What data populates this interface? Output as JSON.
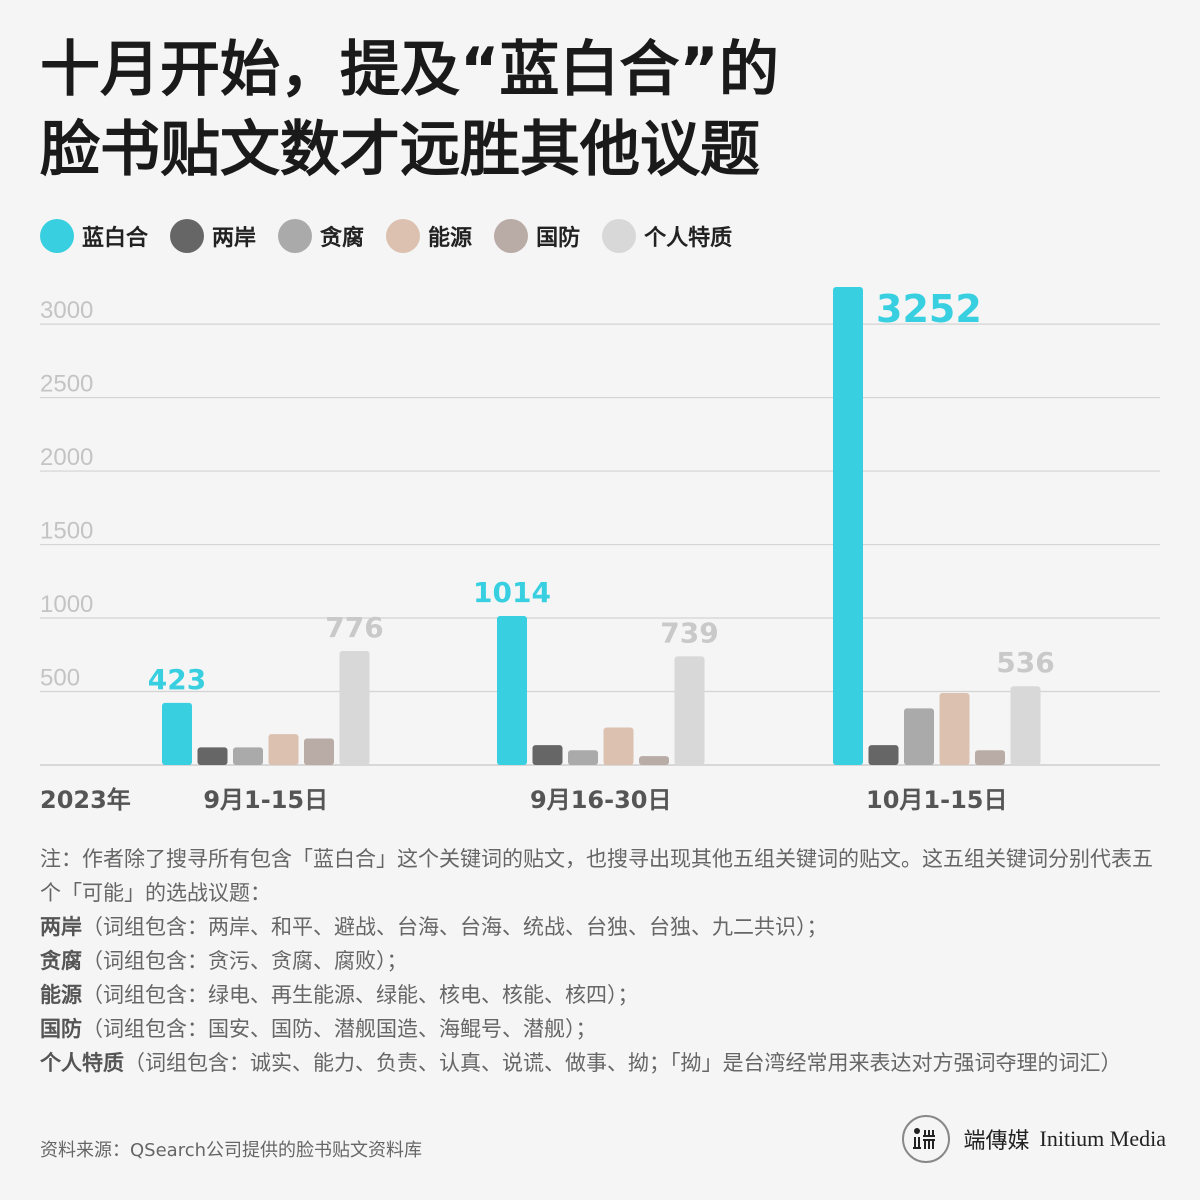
{
  "title_lines": [
    "十月开始，提及“蓝白合”的",
    "脸书贴文数才远胜其他议题"
  ],
  "chart_data": {
    "type": "bar",
    "year_label": "2023年",
    "categories": [
      "9月1-15日",
      "9月16-30日",
      "10月1-15日"
    ],
    "ylim": [
      0,
      3300
    ],
    "yticks": [
      500,
      1000,
      1500,
      2000,
      2500,
      3000
    ],
    "grid": true,
    "legend_position": "top-left",
    "series": [
      {
        "name": "蓝白合",
        "color": "#38d0e0",
        "label_color": "#38d0e0",
        "values": [
          423,
          1014,
          3252
        ],
        "labels": [
          "423",
          "1014",
          "3252"
        ]
      },
      {
        "name": "两岸",
        "color": "#666666",
        "values": [
          120,
          135,
          135
        ]
      },
      {
        "name": "贪腐",
        "color": "#aaaaaa",
        "values": [
          120,
          100,
          385
        ]
      },
      {
        "name": "能源",
        "color": "#dcc1b0",
        "values": [
          210,
          255,
          490
        ]
      },
      {
        "name": "国防",
        "color": "#b9aba6",
        "values": [
          180,
          60,
          100
        ]
      },
      {
        "name": "个人特质",
        "color": "#d8d8d8",
        "label_color": "#c9c9c9",
        "values": [
          776,
          739,
          536
        ],
        "labels": [
          "776",
          "739",
          "536"
        ]
      }
    ]
  },
  "notes": [
    {
      "bold": "",
      "text": "注：作者除了搜寻所有包含「蓝白合」这个关键词的贴文，也搜寻出现其他五组关键词的贴文。这五组关键词分别代表五个「可能」的选战议题："
    },
    {
      "bold": "两岸",
      "text": "（词组包含：两岸、和平、避战、台海、台海、统战、台独、台独、九二共识）；"
    },
    {
      "bold": "贪腐",
      "text": "（词组包含：贪污、贪腐、腐败）；"
    },
    {
      "bold": "能源",
      "text": "（词组包含：绿电、再生能源、绿能、核电、核能、核四）；"
    },
    {
      "bold": "国防",
      "text": "（词组包含：国安、国防、潜舰国造、海鲲号、潜舰）；"
    },
    {
      "bold": "个人特质",
      "text": "（词组包含：诚实、能力、负责、认真、说谎、做事、拗；「拗」是台湾经常用来表达对方强词夺理的词汇）"
    }
  ],
  "source": "资料来源：QSearch公司提供的脸书贴文资料库",
  "brand": {
    "logo_text": "端",
    "name_cn": "端傳媒",
    "name_en": "Initium Media"
  }
}
